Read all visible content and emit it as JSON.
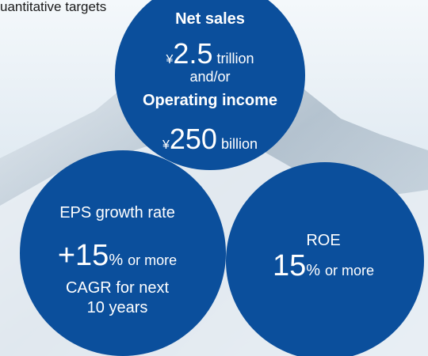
{
  "heading": "uantitative targets",
  "targets": [
    {
      "label": "Net sales",
      "currency": "¥",
      "amount": "2.5",
      "unit": "trillion",
      "connector": "and/or",
      "label2": "Operating income",
      "currency2": "¥",
      "amount2": "250",
      "unit2": "billion"
    },
    {
      "label": "EPS growth rate",
      "amount": "+15",
      "unit": "%",
      "suffix": "or more",
      "note1": "CAGR for next",
      "note2": "10 years"
    },
    {
      "label": "ROE",
      "amount": "15",
      "unit": "%",
      "suffix": "or more"
    }
  ]
}
